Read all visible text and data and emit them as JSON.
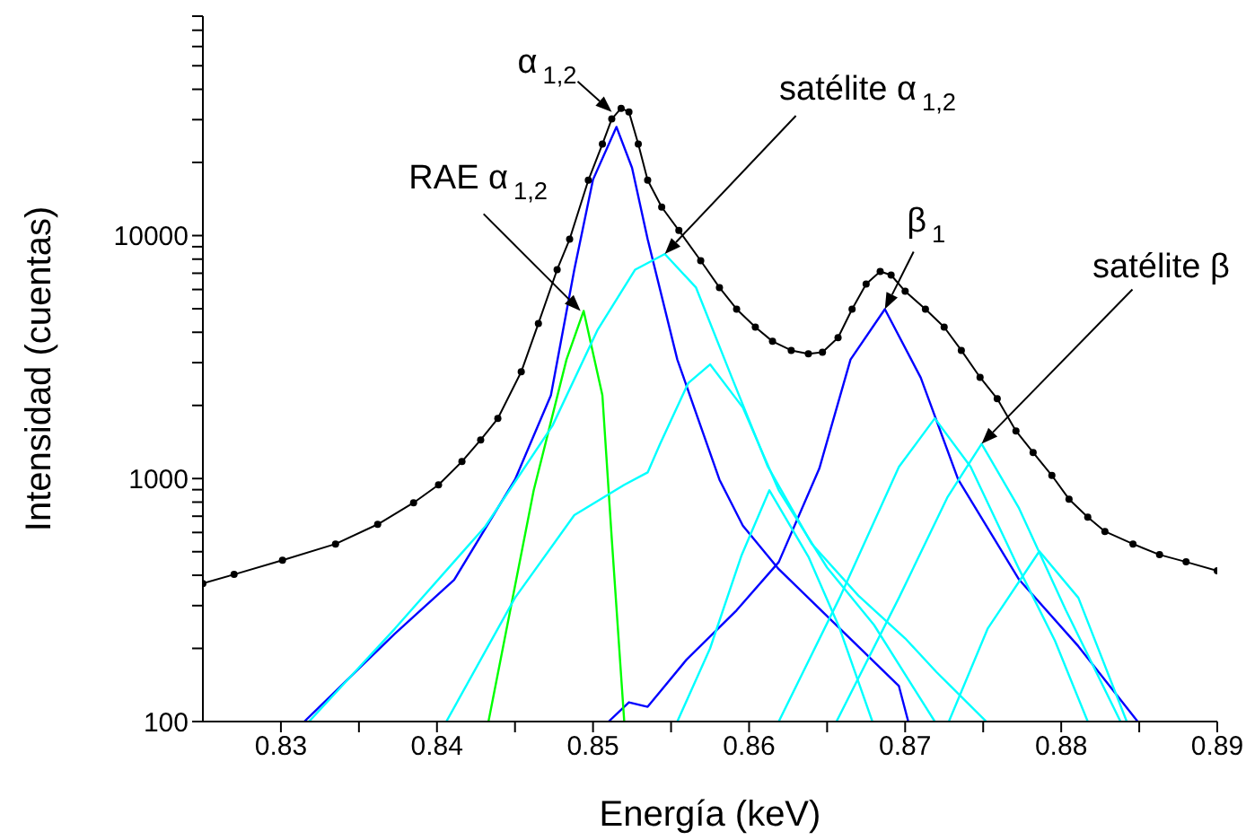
{
  "chart_data": {
    "type": "line",
    "xlabel": "Energía (keV)",
    "ylabel": "Intensidad (cuentas)",
    "log": "y",
    "xlim": [
      0.825,
      0.89
    ],
    "xticks": [
      0.83,
      {
        "value": 0.835,
        "label": null
      },
      0.84,
      {
        "value": 0.845,
        "label": null
      },
      0.85,
      {
        "value": 0.855,
        "label": null
      },
      0.86,
      {
        "value": 0.865,
        "label": null
      },
      0.87,
      {
        "value": 0.875,
        "label": null
      },
      0.88,
      {
        "value": 0.885,
        "label": null
      },
      0.89
    ],
    "ylim": [
      100,
      80000
    ],
    "yticks": [
      100,
      {
        "value": 200,
        "label": null
      },
      {
        "value": 300,
        "label": null
      },
      {
        "value": 400,
        "label": null
      },
      {
        "value": 500,
        "label": null
      },
      {
        "value": 600,
        "label": null
      },
      {
        "value": 700,
        "label": null
      },
      {
        "value": 800,
        "label": null
      },
      {
        "value": 900,
        "label": null
      },
      1000,
      {
        "value": 2000,
        "label": null
      },
      {
        "value": 3000,
        "label": null
      },
      {
        "value": 4000,
        "label": null
      },
      {
        "value": 5000,
        "label": null
      },
      {
        "value": 6000,
        "label": null
      },
      {
        "value": 7000,
        "label": null
      },
      {
        "value": 8000,
        "label": null
      },
      {
        "value": 9000,
        "label": null
      },
      10000,
      {
        "value": 20000,
        "label": null
      },
      {
        "value": 30000,
        "label": null
      },
      {
        "value": 40000,
        "label": null
      },
      {
        "value": 50000,
        "label": null
      },
      {
        "value": 60000,
        "label": null
      },
      {
        "value": 70000,
        "label": null
      },
      {
        "value": 80000,
        "label": null
      }
    ],
    "series": [
      {
        "color": "#000000",
        "marker": "circle",
        "x": [
          0.825,
          0.827,
          0.8301,
          0.8335,
          0.8362,
          0.8385,
          0.8401,
          0.8416,
          0.8428,
          0.8439,
          0.8454,
          0.8465,
          0.8477,
          0.8485,
          0.8497,
          0.8506,
          0.8512,
          0.8518,
          0.8523,
          0.8529,
          0.8535,
          0.8544,
          0.8555,
          0.8569,
          0.8581,
          0.8592,
          0.8604,
          0.8615,
          0.8627,
          0.8638,
          0.8647,
          0.8657,
          0.8666,
          0.8675,
          0.8684,
          0.8691,
          0.87,
          0.8713,
          0.8725,
          0.8736,
          0.8748,
          0.8759,
          0.8771,
          0.8782,
          0.8794,
          0.8805,
          0.8817,
          0.8828,
          0.8846,
          0.8863,
          0.888,
          0.89
        ],
        "values": [
          370,
          403,
          461,
          538,
          648,
          795,
          942,
          1175,
          1442,
          1767,
          2750,
          4350,
          7240,
          9660,
          16900,
          23800,
          30200,
          33400,
          32300,
          23800,
          16900,
          13100,
          10500,
          7880,
          6110,
          4980,
          4200,
          3670,
          3370,
          3260,
          3310,
          3800,
          4980,
          6320,
          7120,
          6880,
          5900,
          4980,
          4200,
          3370,
          2610,
          2130,
          1570,
          1280,
          1030,
          823,
          694,
          606,
          538,
          486,
          454,
          417
        ]
      },
      {
        "color": "#0000ff",
        "marker": "none",
        "x": [
          0.8315,
          0.8373,
          0.8411,
          0.845,
          0.8473,
          0.8488,
          0.85,
          0.8515,
          0.8525,
          0.8535,
          0.8554,
          0.8581,
          0.8596,
          0.8619,
          0.8658,
          0.8696,
          0.8702
        ],
        "values": [
          100,
          230,
          383,
          990,
          2200,
          7240,
          17000,
          28000,
          19000,
          9660,
          3090,
          990,
          640,
          424,
          242,
          140,
          100
        ]
      },
      {
        "color": "#0000ff",
        "marker": "none",
        "x": [
          0.851,
          0.8523,
          0.8535,
          0.856,
          0.8592,
          0.8619,
          0.8645,
          0.8665,
          0.8687,
          0.871,
          0.8734,
          0.8773,
          0.8811,
          0.8849
        ],
        "values": [
          100,
          120,
          115,
          180,
          287,
          453,
          1100,
          3090,
          4980,
          2600,
          990,
          384,
          204,
          100
        ]
      },
      {
        "color": "#00ff00",
        "marker": "none",
        "x": [
          0.8433,
          0.8462,
          0.8483,
          0.8494,
          0.8506,
          0.8512,
          0.852
        ],
        "values": [
          100,
          895,
          3090,
          4900,
          2200,
          566,
          100
        ]
      },
      {
        "color": "#00ffff",
        "marker": "none",
        "x": [
          0.8318,
          0.8373,
          0.8431,
          0.8474,
          0.8503,
          0.8527,
          0.8546,
          0.8566,
          0.8589,
          0.8612,
          0.864,
          0.867,
          0.87,
          0.872,
          0.8752
        ],
        "values": [
          100,
          241,
          636,
          1650,
          4100,
          7240,
          8400,
          6110,
          2600,
          1120,
          540,
          330,
          220,
          160,
          100
        ]
      },
      {
        "color": "#00ffff",
        "marker": "none",
        "x": [
          0.8406,
          0.845,
          0.8488,
          0.852,
          0.8535,
          0.8543,
          0.8561,
          0.8575,
          0.8596,
          0.8619,
          0.865,
          0.868,
          0.8719
        ],
        "values": [
          100,
          323,
          707,
          942,
          1060,
          1390,
          2470,
          2950,
          1960,
          895,
          430,
          250,
          100
        ]
      },
      {
        "color": "#00ffff",
        "marker": "none",
        "x": [
          0.8554,
          0.8575,
          0.8595,
          0.8613,
          0.8638,
          0.8658,
          0.8679
        ],
        "values": [
          100,
          200,
          480,
          895,
          477,
          242,
          100
        ]
      },
      {
        "color": "#00ffff",
        "marker": "none",
        "x": [
          0.8619,
          0.8658,
          0.8696,
          0.8719,
          0.8742,
          0.8773,
          0.8796,
          0.8817
        ],
        "values": [
          100,
          323,
          1117,
          1770,
          1117,
          424,
          215,
          100
        ]
      },
      {
        "color": "#00ffff",
        "marker": "none",
        "x": [
          0.8656,
          0.8696,
          0.8727,
          0.8749,
          0.8773,
          0.8803,
          0.8838
        ],
        "values": [
          100,
          323,
          835,
          1390,
          754,
          287,
          100
        ]
      },
      {
        "color": "#00ffff",
        "marker": "none",
        "x": [
          0.8728,
          0.8753,
          0.8786,
          0.8811,
          0.8842
        ],
        "values": [
          100,
          242,
          502,
          323,
          100
        ]
      }
    ],
    "annotations": [
      {
        "text": "α$_{1,2}$",
        "x": 0.8512,
        "y": 32300
      },
      {
        "text": "RAE α$_{1,2}$",
        "x": 0.8492,
        "y": 4900
      },
      {
        "text": "satélite α$_{1,2}$",
        "x": 0.8546,
        "y": 8400
      },
      {
        "text": "β$_{1}$",
        "x": 0.8687,
        "y": 4980
      },
      {
        "text": "satélite β",
        "x": 0.8749,
        "y": 1390
      }
    ]
  }
}
